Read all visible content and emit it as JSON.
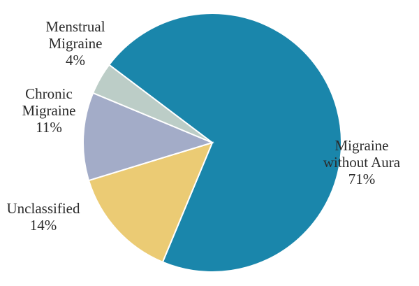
{
  "chart_data": {
    "type": "pie",
    "slices": [
      {
        "label_lines": [
          "Migraine",
          "without Aura"
        ],
        "pct_label": "71%",
        "value": 71,
        "color": "#1a86ab"
      },
      {
        "label_lines": [
          "Unclassified"
        ],
        "pct_label": "14%",
        "value": 14,
        "color": "#ebcb74"
      },
      {
        "label_lines": [
          "Chronic",
          "Migraine"
        ],
        "pct_label": "11%",
        "value": 11,
        "color": "#a3acc8"
      },
      {
        "label_lines": [
          "Menstrual",
          "Migraine"
        ],
        "pct_label": "4%",
        "value": 4,
        "color": "#bccdc7"
      }
    ]
  }
}
